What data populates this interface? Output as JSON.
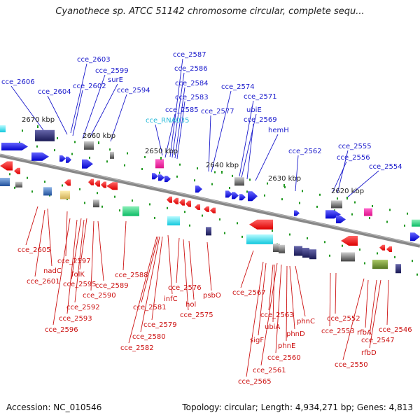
{
  "header": {
    "title": "Cyanothece sp. ATCC 51142 chromosome circular, complete sequ..."
  },
  "footer": {
    "accession": "Accession: NC_010546",
    "topology": "Topology: circular; Length: 4,934,271 bp; Genes: 4,813"
  },
  "colors": {
    "forward_label": "#1a1acc",
    "reverse_label": "#cc1111",
    "rna_label": "#22b8d8",
    "forward_feature": "#1414e0",
    "reverse_feature": "#ee1111",
    "backbone": "#888888",
    "tick": "#229922"
  },
  "icons": {
    "forward_gene": "arrow-right-icon",
    "reverse_gene": "arrow-left-icon"
  },
  "ticks": [
    "2670 kbp",
    "2660 kbp",
    "2650 kbp",
    "2640 kbp",
    "2630 kbp",
    "2620 kbp"
  ],
  "forward_labels": [
    "cce_2603",
    "cce_2606",
    "cce_2599",
    "surE",
    "cce_2604",
    "cce_2602",
    "cce_2594",
    "cce_2587",
    "cce_2586",
    "cce_2584",
    "cce_2583",
    "cce_2585",
    "cce_RNA035",
    "cce_2574",
    "cce_2571",
    "cce_2577",
    "ubiE",
    "cce_2569",
    "hemH",
    "cce_2562",
    "cce_2555",
    "cce_2556",
    "cce_2554"
  ],
  "reverse_labels": [
    "cce_2605",
    "nadC",
    "cce_2597",
    "cce_2601",
    "folK",
    "cce_2595",
    "cce_2589",
    "cce_2588",
    "cce_2590",
    "cce_2592",
    "cce_2593",
    "cce_2596",
    "cce_2581",
    "infC",
    "cce_2576",
    "psbO",
    "cce_2567",
    "hol",
    "cce_2575",
    "cce_2579",
    "cce_2580",
    "cce_2582",
    "cce_2563",
    "ubiA",
    "phnC",
    "phnD",
    "sigF",
    "phnE",
    "cce_2560",
    "cce_2561",
    "cce_2565",
    "cce_2552",
    "cce_2553",
    "rfbA",
    "cce_2546",
    "cce_2547",
    "rfbD",
    "cce_2550"
  ]
}
